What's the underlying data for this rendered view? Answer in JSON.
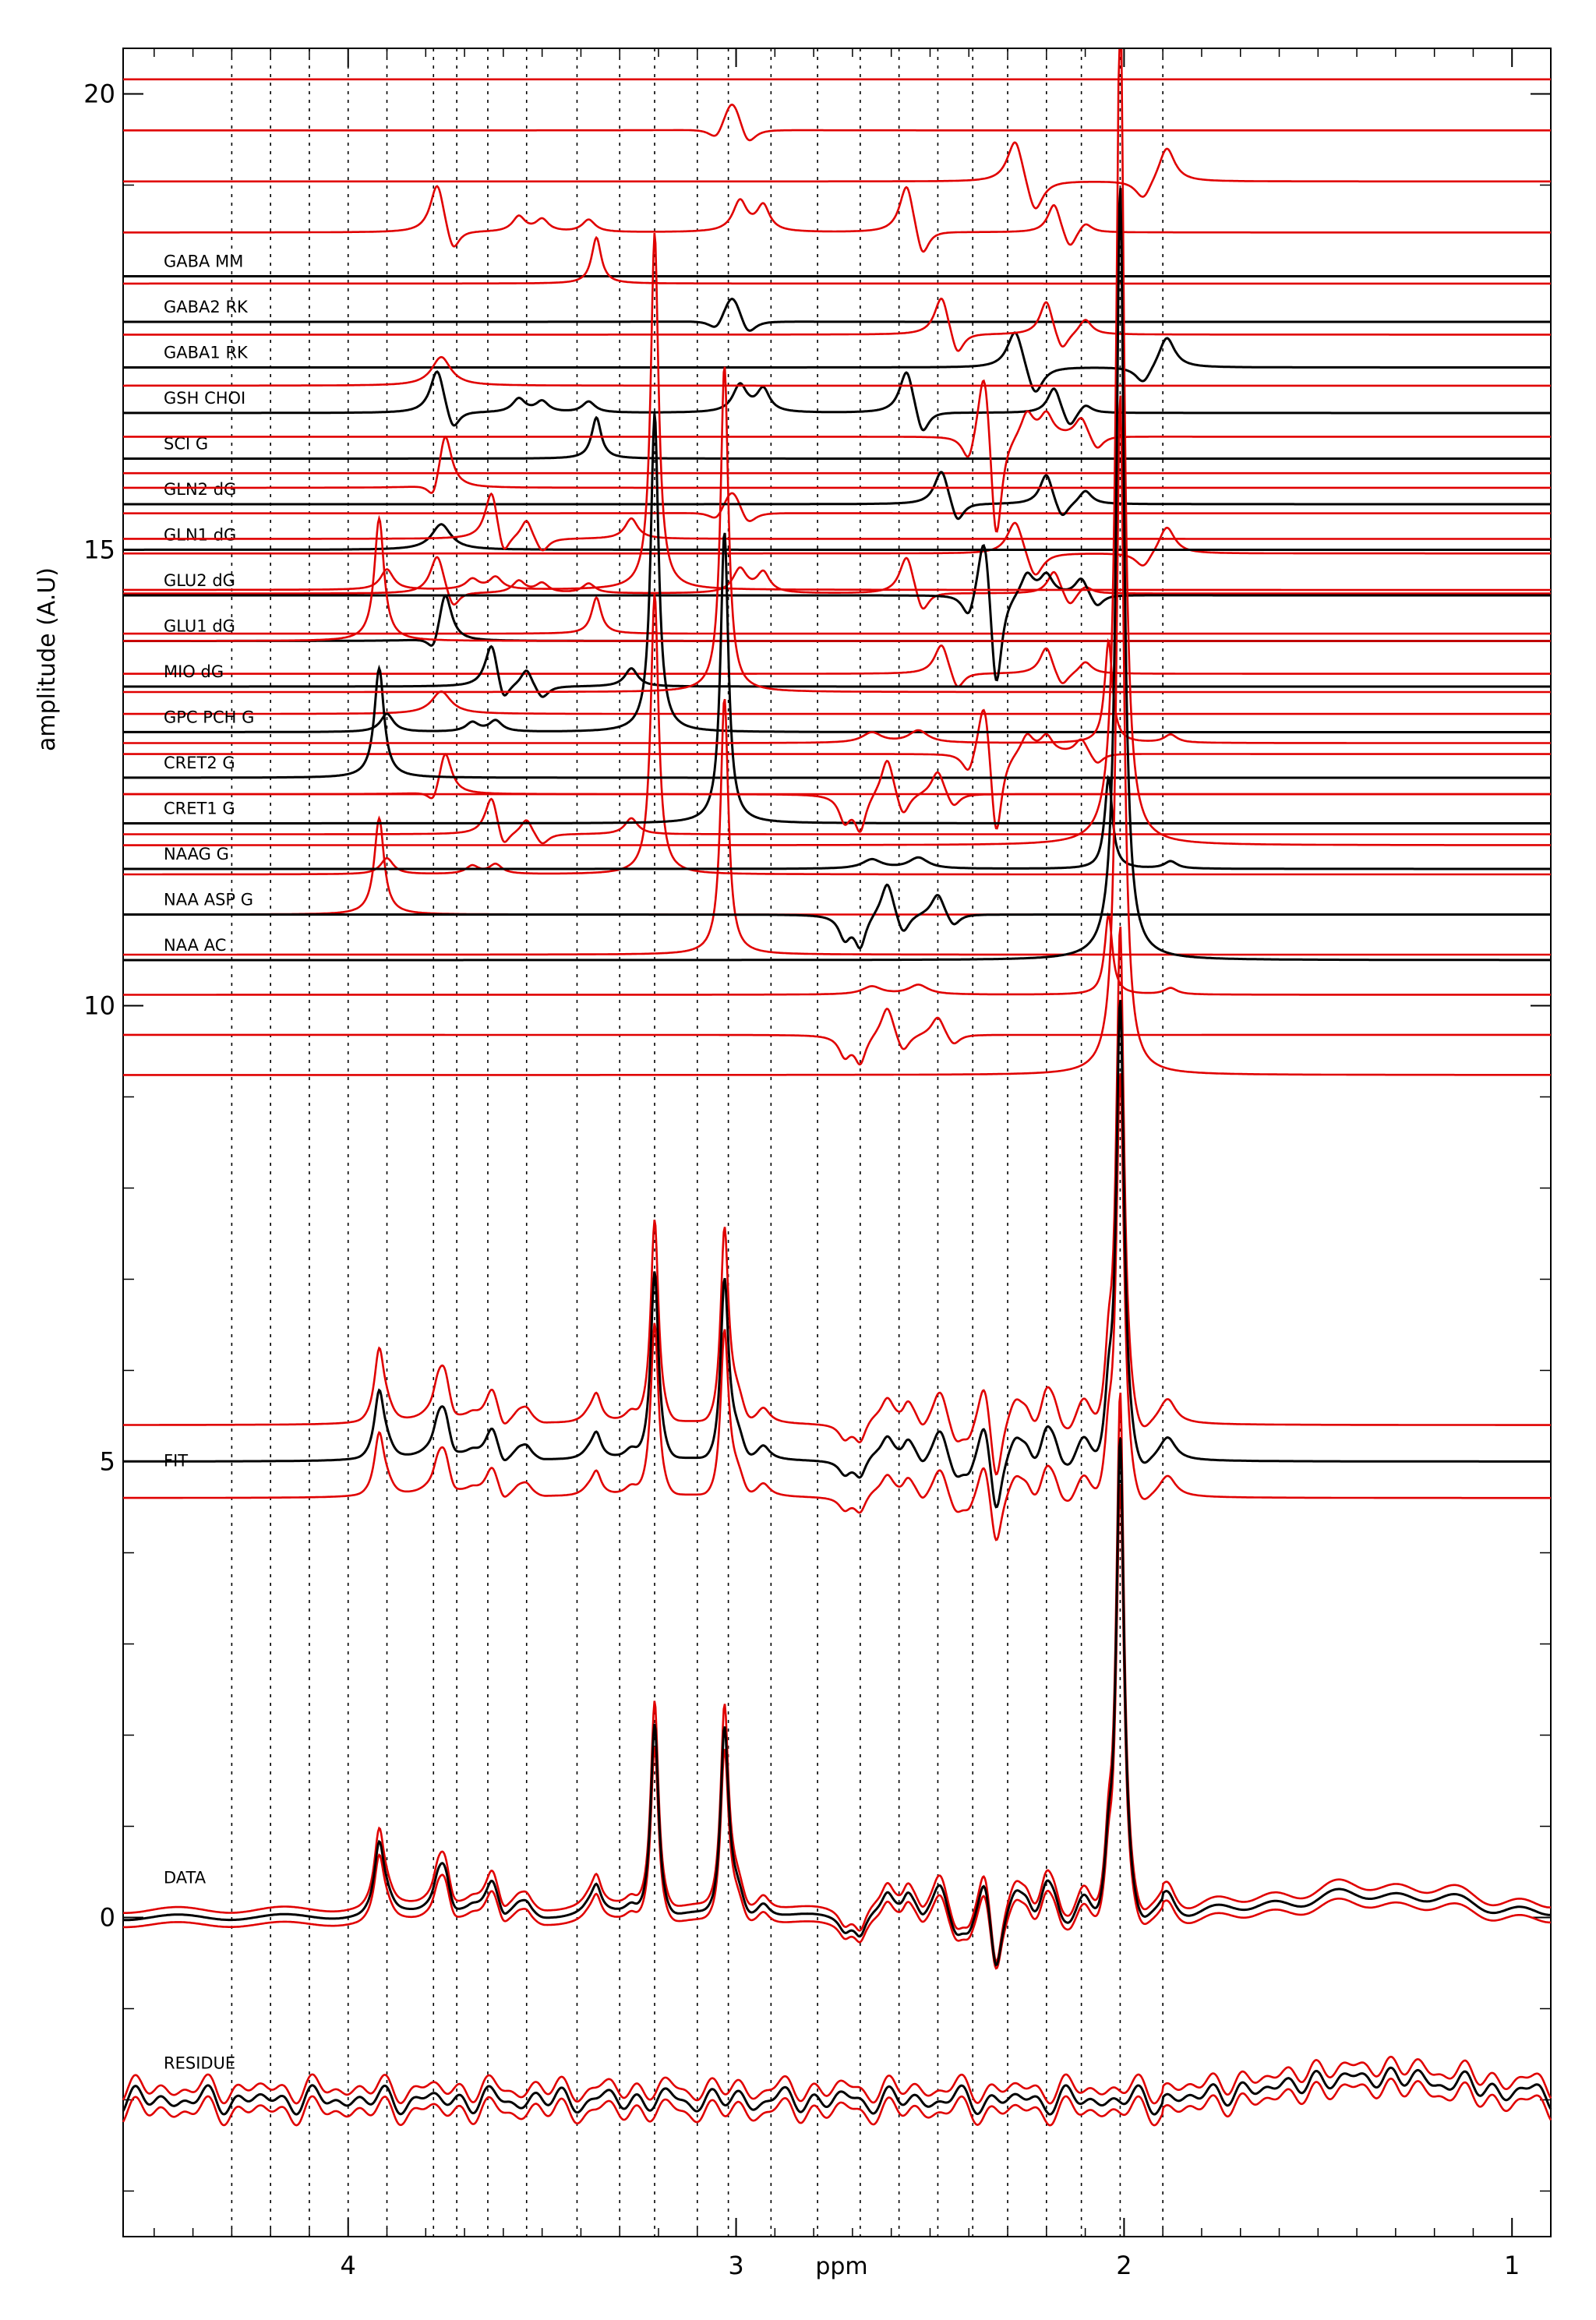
{
  "chart_data": {
    "type": "line",
    "xlabel": "ppm",
    "ylabel": "amplitude (A.U)",
    "xlim": [
      4.58,
      0.9
    ],
    "ylim": [
      -3.5,
      20.5
    ],
    "x_reversed": true,
    "grid": "vertical dotted lines at metabolite resonances",
    "xticks": [
      {
        "value": 4,
        "label": "4"
      },
      {
        "value": 3,
        "label": "3"
      },
      {
        "value": 2,
        "label": "2"
      },
      {
        "value": 1,
        "label": "1"
      }
    ],
    "yticks": [
      {
        "value": 0,
        "label": "0"
      },
      {
        "value": 5,
        "label": "5"
      },
      {
        "value": 10,
        "label": "10"
      },
      {
        "value": 15,
        "label": "15"
      },
      {
        "value": 20,
        "label": "20"
      }
    ],
    "colors": {
      "fit": "#000000",
      "confidence_band": "#e00000",
      "grid": "#000000"
    },
    "guide_ppm": [
      4.3,
      4.2,
      4.1,
      4.0,
      3.9,
      3.78,
      3.72,
      3.64,
      3.54,
      3.41,
      3.3,
      3.21,
      3.1,
      3.02,
      2.91,
      2.79,
      2.68,
      2.58,
      2.48,
      2.39,
      2.3,
      2.2,
      2.11,
      2.01,
      1.9
    ],
    "metabolites": [
      {
        "label": "GABA MM",
        "baseline": 18.0,
        "peaks": []
      },
      {
        "label": "GABA2 RK",
        "baseline": 17.5,
        "peaks": [
          {
            "ppm": 3.01,
            "amp": 0.35,
            "width": 0.03
          },
          {
            "ppm": 2.97,
            "amp": -0.2,
            "width": 0.025
          },
          {
            "ppm": 3.05,
            "amp": -0.15,
            "width": 0.025
          }
        ]
      },
      {
        "label": "GABA1 RK",
        "baseline": 17.0,
        "peaks": [
          {
            "ppm": 2.28,
            "amp": 0.45,
            "width": 0.025
          },
          {
            "ppm": 2.23,
            "amp": -0.35,
            "width": 0.025
          },
          {
            "ppm": 1.89,
            "amp": 0.35,
            "width": 0.025
          },
          {
            "ppm": 1.95,
            "amp": -0.2,
            "width": 0.025
          }
        ]
      },
      {
        "label": "GSH CHOI",
        "baseline": 16.5,
        "peaks": [
          {
            "ppm": 3.77,
            "amp": 0.5,
            "width": 0.022
          },
          {
            "ppm": 3.73,
            "amp": -0.25,
            "width": 0.02
          },
          {
            "ppm": 3.56,
            "amp": 0.15,
            "width": 0.02
          },
          {
            "ppm": 3.5,
            "amp": 0.12,
            "width": 0.02
          },
          {
            "ppm": 3.38,
            "amp": 0.12,
            "width": 0.02
          },
          {
            "ppm": 2.99,
            "amp": 0.3,
            "width": 0.022
          },
          {
            "ppm": 2.93,
            "amp": 0.25,
            "width": 0.02
          },
          {
            "ppm": 2.56,
            "amp": 0.5,
            "width": 0.022
          },
          {
            "ppm": 2.52,
            "amp": -0.3,
            "width": 0.02
          },
          {
            "ppm": 2.18,
            "amp": 0.3,
            "width": 0.02
          },
          {
            "ppm": 2.14,
            "amp": -0.2,
            "width": 0.02
          },
          {
            "ppm": 2.1,
            "amp": 0.1,
            "width": 0.02
          }
        ]
      },
      {
        "label": "SCI G",
        "baseline": 16.0,
        "peaks": [
          {
            "ppm": 3.36,
            "amp": 0.45,
            "width": 0.015
          }
        ]
      },
      {
        "label": "GLN2 dG",
        "baseline": 15.5,
        "peaks": [
          {
            "ppm": 2.47,
            "amp": 0.4,
            "width": 0.022
          },
          {
            "ppm": 2.43,
            "amp": -0.25,
            "width": 0.02
          },
          {
            "ppm": 2.2,
            "amp": 0.35,
            "width": 0.02
          },
          {
            "ppm": 2.16,
            "amp": -0.2,
            "width": 0.02
          },
          {
            "ppm": 2.1,
            "amp": 0.15,
            "width": 0.02
          }
        ]
      },
      {
        "label": "GLN1 dG",
        "baseline": 15.0,
        "peaks": [
          {
            "ppm": 3.76,
            "amp": 0.28,
            "width": 0.03
          }
        ]
      },
      {
        "label": "GLU2 dG",
        "baseline": 14.5,
        "peaks": [
          {
            "ppm": 2.36,
            "amp": 0.9,
            "width": 0.02
          },
          {
            "ppm": 2.33,
            "amp": -1.2,
            "width": 0.018
          },
          {
            "ppm": 2.4,
            "amp": -0.3,
            "width": 0.02
          },
          {
            "ppm": 2.25,
            "amp": 0.25,
            "width": 0.02
          },
          {
            "ppm": 2.2,
            "amp": 0.22,
            "width": 0.02
          },
          {
            "ppm": 2.11,
            "amp": 0.2,
            "width": 0.02
          },
          {
            "ppm": 2.07,
            "amp": -0.15,
            "width": 0.02
          }
        ]
      },
      {
        "label": "GLU1 dG",
        "baseline": 14.0,
        "peaks": [
          {
            "ppm": 3.75,
            "amp": 0.55,
            "width": 0.02
          },
          {
            "ppm": 3.78,
            "amp": -0.2,
            "width": 0.018
          }
        ]
      },
      {
        "label": "MIO dG",
        "baseline": 13.5,
        "peaks": [
          {
            "ppm": 3.63,
            "amp": 0.5,
            "width": 0.02
          },
          {
            "ppm": 3.6,
            "amp": -0.25,
            "width": 0.018
          },
          {
            "ppm": 3.54,
            "amp": 0.2,
            "width": 0.018
          },
          {
            "ppm": 3.27,
            "amp": 0.2,
            "width": 0.02
          },
          {
            "ppm": 3.5,
            "amp": -0.15,
            "width": 0.02
          }
        ]
      },
      {
        "label": "GPC PCH G",
        "baseline": 13.0,
        "peaks": [
          {
            "ppm": 3.21,
            "amp": 3.5,
            "width": 0.012
          },
          {
            "ppm": 3.62,
            "amp": 0.12,
            "width": 0.02
          },
          {
            "ppm": 3.68,
            "amp": 0.1,
            "width": 0.02
          },
          {
            "ppm": 3.9,
            "amp": 0.2,
            "width": 0.02
          }
        ]
      },
      {
        "label": "CRET2 G",
        "baseline": 12.5,
        "peaks": [
          {
            "ppm": 3.92,
            "amp": 1.2,
            "width": 0.015
          }
        ]
      },
      {
        "label": "CRET1 G",
        "baseline": 12.0,
        "peaks": [
          {
            "ppm": 3.03,
            "amp": 3.2,
            "width": 0.012
          }
        ]
      },
      {
        "label": "NAAG G",
        "baseline": 11.5,
        "peaks": [
          {
            "ppm": 2.04,
            "amp": 1.0,
            "width": 0.012
          },
          {
            "ppm": 2.53,
            "amp": 0.12,
            "width": 0.03
          },
          {
            "ppm": 2.65,
            "amp": 0.1,
            "width": 0.03
          },
          {
            "ppm": 1.88,
            "amp": 0.08,
            "width": 0.02
          }
        ]
      },
      {
        "label": "NAA ASP G",
        "baseline": 11.0,
        "peaks": [
          {
            "ppm": 2.61,
            "amp": 0.4,
            "width": 0.02
          },
          {
            "ppm": 2.57,
            "amp": -0.25,
            "width": 0.02
          },
          {
            "ppm": 2.72,
            "amp": -0.25,
            "width": 0.018
          },
          {
            "ppm": 2.68,
            "amp": -0.35,
            "width": 0.018
          },
          {
            "ppm": 2.48,
            "amp": 0.25,
            "width": 0.02
          },
          {
            "ppm": 2.44,
            "amp": -0.15,
            "width": 0.02
          }
        ]
      },
      {
        "label": "NAA AC",
        "baseline": 10.5,
        "peaks": [
          {
            "ppm": 2.01,
            "amp": 8.5,
            "width": 0.012
          }
        ]
      }
    ],
    "fit": {
      "label": "FIT",
      "baseline": 5.0
    },
    "data": {
      "label": "DATA",
      "baseline": 0.0
    },
    "residue": {
      "label": "RESIDUE",
      "baseline": -2.0
    }
  }
}
